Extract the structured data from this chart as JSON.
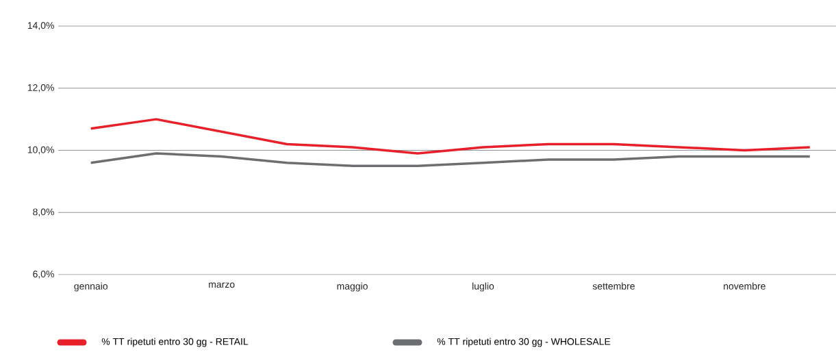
{
  "chart_data": {
    "type": "line",
    "categories": [
      "gennaio",
      null,
      "marzo",
      null,
      "maggio",
      null,
      "luglio",
      null,
      "settembre",
      null,
      "novembre",
      null
    ],
    "series": [
      {
        "name": "% TT ripetuti entro 30 gg - RETAIL",
        "color": "#e8202a",
        "values": [
          10.7,
          11.0,
          10.6,
          10.2,
          10.1,
          9.9,
          10.1,
          10.2,
          10.2,
          10.1,
          10.0,
          10.1
        ]
      },
      {
        "name": "% TT ripetuti entro 30 gg - WHOLESALE",
        "color": "#6d6e71",
        "values": [
          9.6,
          9.9,
          9.8,
          9.6,
          9.5,
          9.5,
          9.6,
          9.7,
          9.7,
          9.8,
          9.8,
          9.8
        ]
      }
    ],
    "ylim": [
      6,
      14
    ],
    "yticks": [
      {
        "value": 6,
        "label": "6,0%"
      },
      {
        "value": 8,
        "label": "8,0%"
      },
      {
        "value": 10,
        "label": "10,0%"
      },
      {
        "value": 12,
        "label": "12,0%"
      },
      {
        "value": 14,
        "label": "14,0%"
      }
    ],
    "grid": "y",
    "legend": "bottom",
    "marker": "none",
    "line_style": "solid"
  }
}
